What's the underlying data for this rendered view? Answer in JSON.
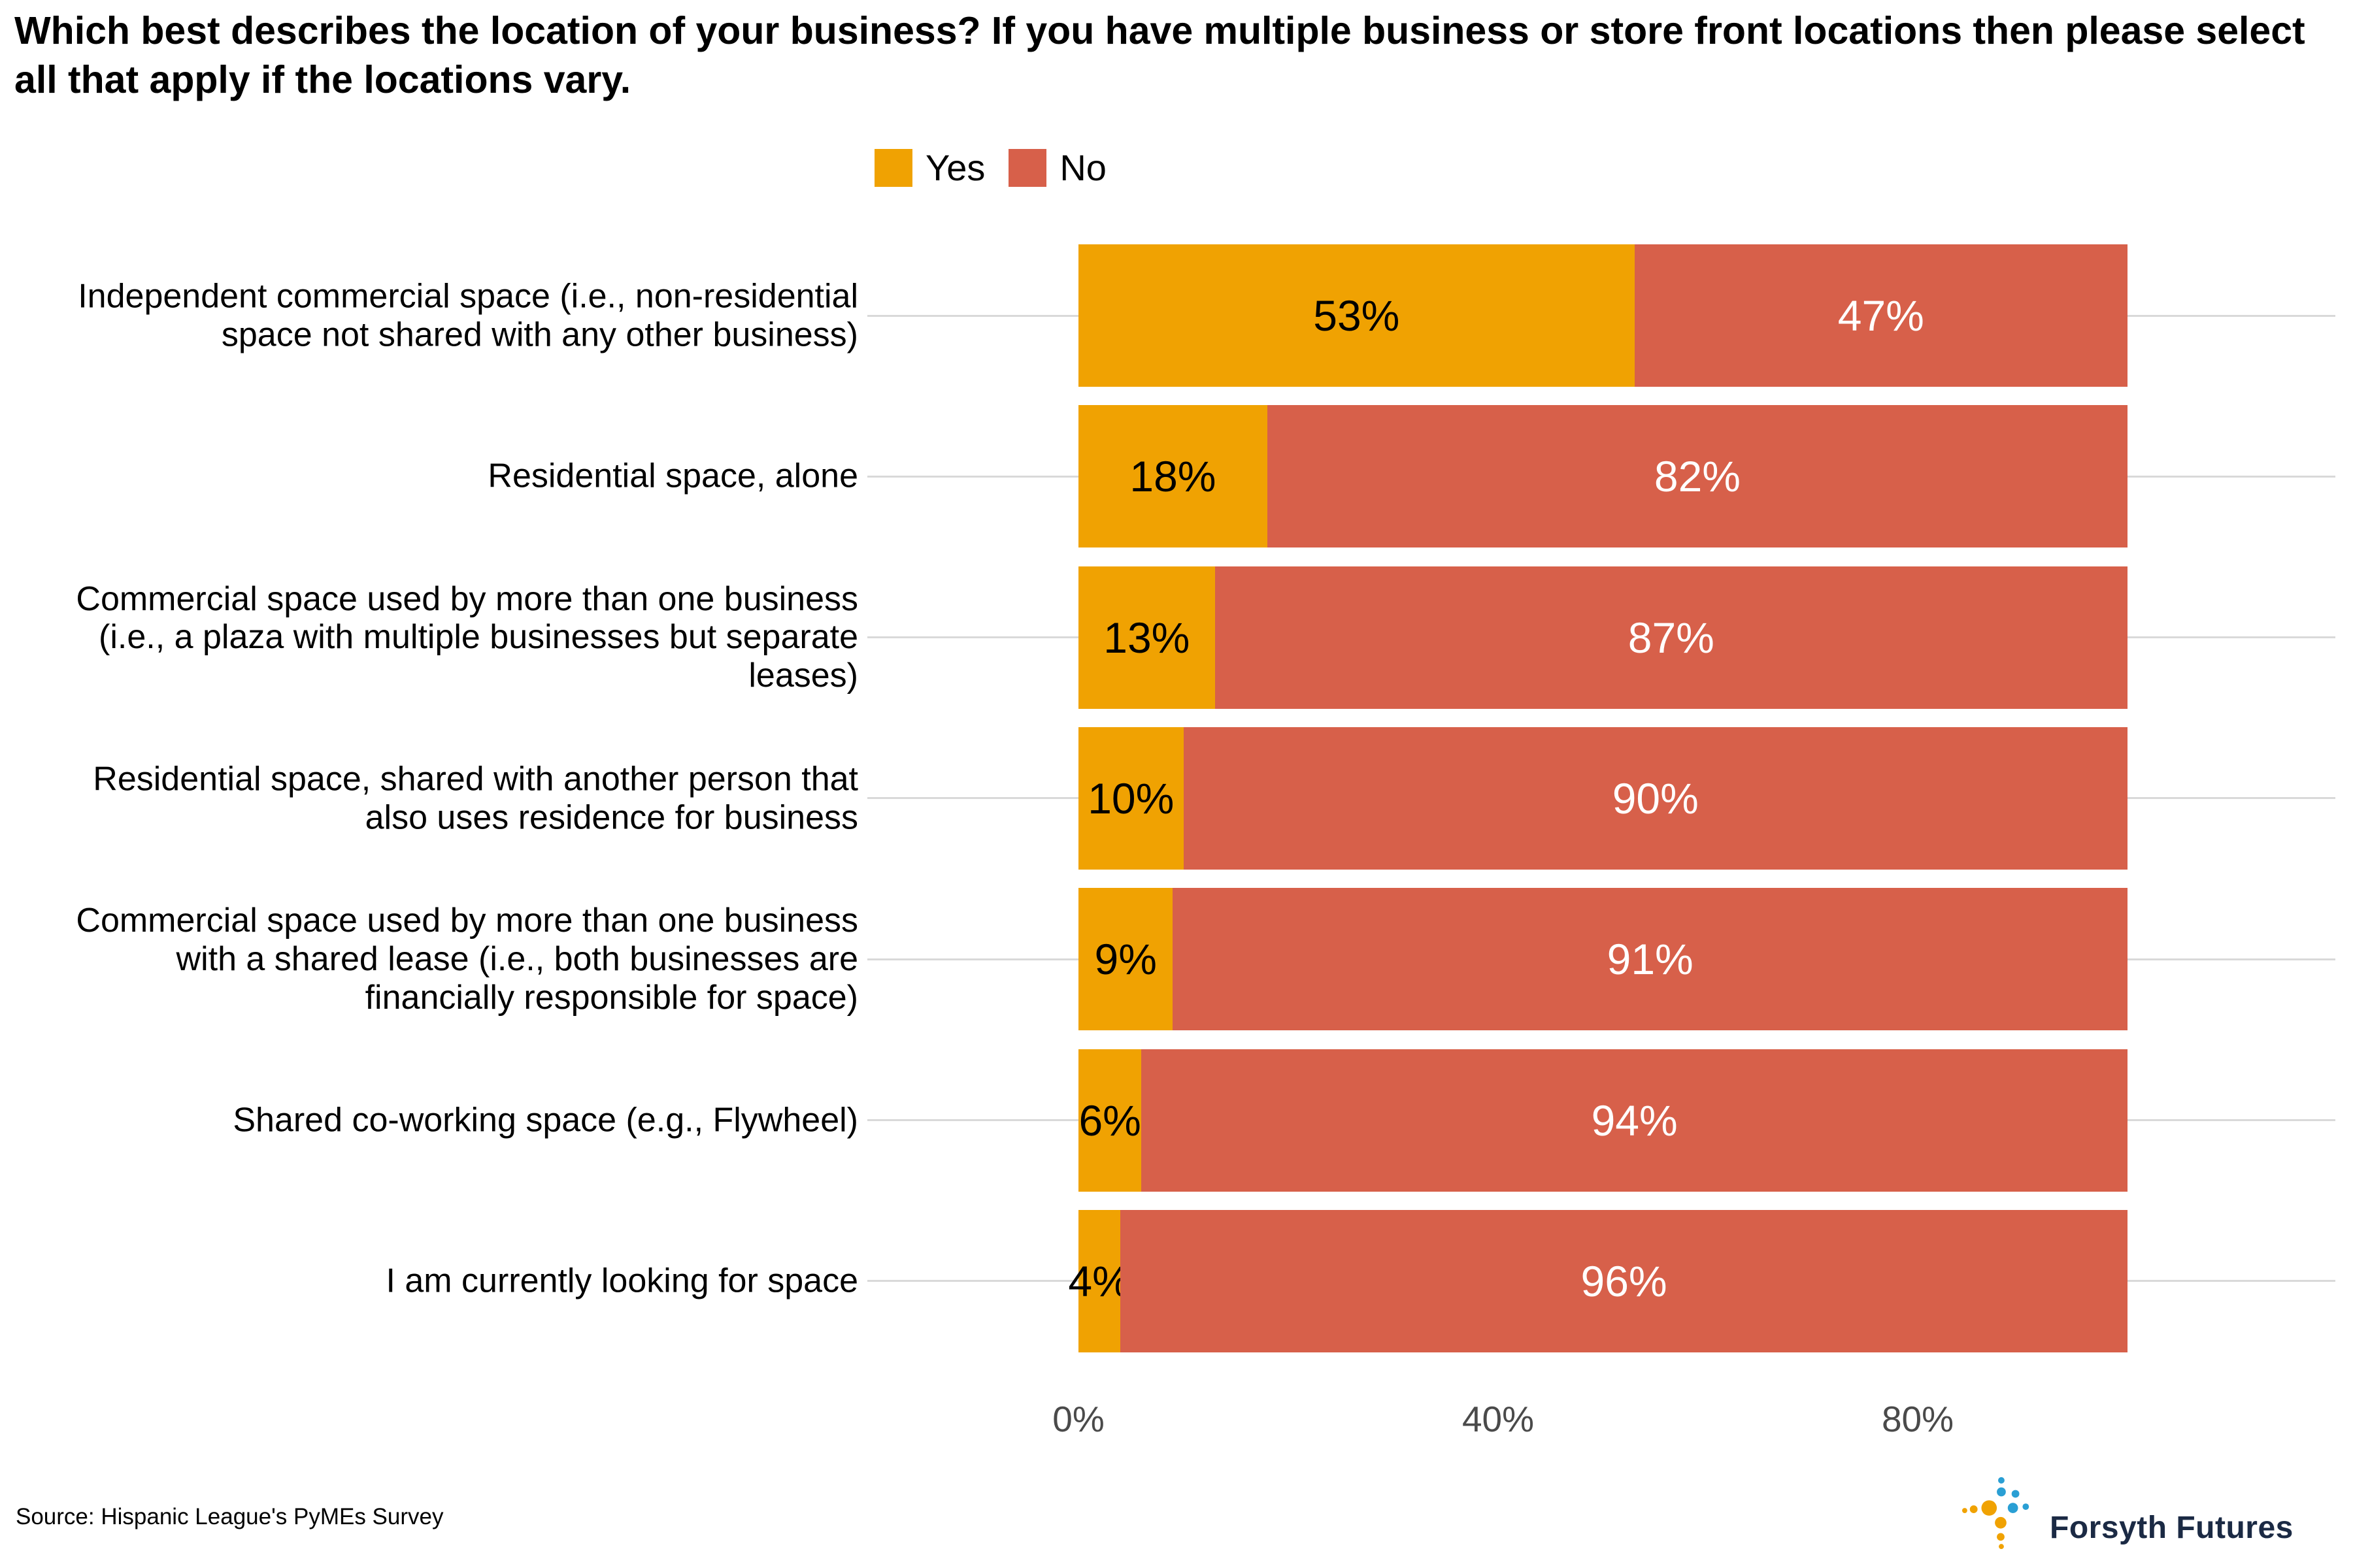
{
  "title": "Which best describes the location of your business? If you have multiple business or store front locations then please select all that apply if the locations vary.",
  "chart_data": {
    "type": "bar",
    "orientation": "horizontal",
    "stacked": true,
    "unit": "percent",
    "xlim": [
      0,
      100
    ],
    "x_ticks": [
      "0%",
      "40%",
      "80%"
    ],
    "x_tick_values": [
      0,
      40,
      80
    ],
    "grid": "horizontal-only",
    "legend_position": "top",
    "gridline_color": "#D9D9D9",
    "categories": [
      "Independent commercial space (i.e., non-residential space not shared with any other business)",
      "Residential space, alone",
      "Commercial space used by more than one business (i.e., a plaza with multiple businesses but separate leases)",
      "Residential space, shared with another person that also uses residence for business",
      "Commercial space used by more than one business with a shared lease (i.e., both businesses are financially responsible for space)",
      "Shared co-working space (e.g., Flywheel)",
      "I am currently looking for space"
    ],
    "series": [
      {
        "name": "Yes",
        "color": "#F0A202",
        "label_color": "#000000",
        "values": [
          53,
          18,
          13,
          10,
          9,
          6,
          4
        ]
      },
      {
        "name": "No",
        "color": "#D7604A",
        "label_color": "#FFFFFF",
        "values": [
          47,
          82,
          87,
          90,
          91,
          94,
          96
        ]
      }
    ]
  },
  "source": "Source: Hispanic League's PyMEs Survey",
  "logo": {
    "text": "Forsyth Futures",
    "colors": {
      "orange": "#F0A202",
      "blue": "#2A9FD4",
      "text": "#1B2A44"
    }
  }
}
